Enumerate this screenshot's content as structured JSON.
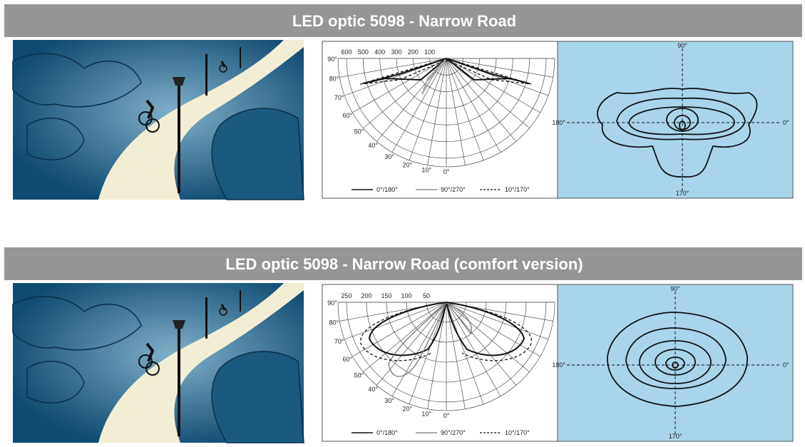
{
  "sections": [
    {
      "title": "LED optic 5098 - Narrow Road",
      "polar": {
        "radial_labels": [
          "600",
          "500",
          "400",
          "300",
          "200",
          "100"
        ],
        "angle_labels": [
          "90°",
          "80°",
          "70°",
          "60°",
          "50°",
          "40°",
          "30°",
          "20°",
          "10°",
          "0°"
        ],
        "legend": [
          "0°/180°",
          "90°/270°",
          "10°/170°"
        ]
      },
      "isolux": {
        "top": "90°",
        "left": "180°",
        "right": "0°",
        "bottom": "170°"
      }
    },
    {
      "title": "LED optic 5098 - Narrow Road (comfort version)",
      "polar": {
        "radial_labels": [
          "250",
          "200",
          "150",
          "100",
          "50"
        ],
        "angle_labels": [
          "90°",
          "80°",
          "70°",
          "60°",
          "50°",
          "40°",
          "30°",
          "20°",
          "10°",
          "0°"
        ],
        "legend": [
          "0°/180°",
          "90°/270°",
          "10°/170°"
        ]
      },
      "isolux": {
        "top": "90°",
        "left": "180°",
        "right": "0°",
        "bottom": "170°"
      }
    }
  ]
}
